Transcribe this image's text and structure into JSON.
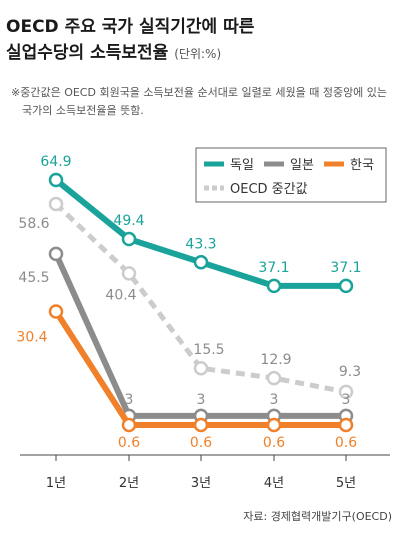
{
  "title_line1": "OECD 주요 국가 실직기간에 따른",
  "title_line2": "실업수당의 소득보전율",
  "unit": "(단위:%)",
  "note": "※중간값은 OECD 회원국을 소득보전율 순서대로 일렬로 세웠을 때 정중앙에 있는 국가의 소득보전율을 뜻함.",
  "source": "자료: 경제협력개발기구(OECD)",
  "chart_data": {
    "type": "line",
    "categories": [
      "1년",
      "2년",
      "3년",
      "4년",
      "5년"
    ],
    "series": [
      {
        "name": "독일",
        "values": [
          64.9,
          49.4,
          43.3,
          37.1,
          37.1
        ],
        "color": "#1aa39a",
        "style": "solid"
      },
      {
        "name": "일본",
        "values": [
          45.5,
          3,
          3,
          3,
          3
        ],
        "color": "#8c8c8c",
        "style": "solid"
      },
      {
        "name": "한국",
        "values": [
          30.4,
          0.6,
          0.6,
          0.6,
          0.6
        ],
        "color": "#f0802a",
        "style": "solid"
      },
      {
        "name": "OECD 중간값",
        "values": [
          58.6,
          40.4,
          15.5,
          12.9,
          9.3
        ],
        "color": "#cccccc",
        "style": "dashed"
      }
    ],
    "data_labels": [
      [
        "64.9",
        "49.4",
        "43.3",
        "37.1",
        "37.1"
      ],
      [
        "45.5",
        "3",
        "3",
        "3",
        "3"
      ],
      [
        "30.4",
        "0.6",
        "0.6",
        "0.6",
        "0.6"
      ],
      [
        "58.6",
        "40.4",
        "15.5",
        "12.9",
        "9.3"
      ]
    ],
    "legend_position": "top-right",
    "grid": false
  }
}
